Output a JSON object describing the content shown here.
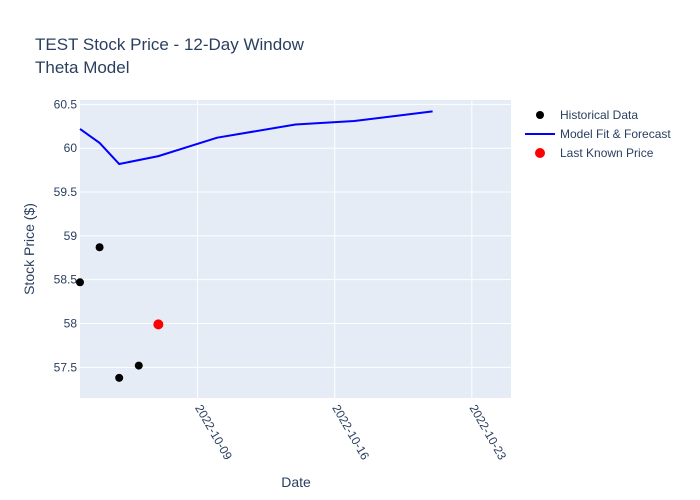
{
  "chart_data": {
    "type": "line",
    "title_lines": [
      "TEST Stock Price - 12-Day Window",
      "Theta Model"
    ],
    "xlabel": "Date",
    "ylabel": "Stock Price ($)",
    "x_range": [
      "2022-10-03",
      "2022-10-25"
    ],
    "ylim": [
      57.15,
      60.55
    ],
    "x_ticks": [
      "2022-10-09",
      "2022-10-16",
      "2022-10-23"
    ],
    "y_ticks": [
      57.5,
      58,
      58.5,
      59,
      59.5,
      60,
      60.5
    ],
    "grid": true,
    "legend_position": "top-right",
    "series": [
      {
        "name": "Historical Data",
        "kind": "markers",
        "color": "#000000",
        "points": [
          {
            "x": "2022-10-03",
            "y": 58.47
          },
          {
            "x": "2022-10-04",
            "y": 58.87
          },
          {
            "x": "2022-10-05",
            "y": 57.38
          },
          {
            "x": "2022-10-06",
            "y": 57.52
          }
        ]
      },
      {
        "name": "Model Fit & Forecast",
        "kind": "line",
        "color": "#0000ff",
        "points": [
          {
            "x": "2022-10-03",
            "y": 60.22
          },
          {
            "x": "2022-10-04",
            "y": 60.06
          },
          {
            "x": "2022-10-05",
            "y": 59.82
          },
          {
            "x": "2022-10-07",
            "y": 59.91
          },
          {
            "x": "2022-10-10",
            "y": 60.12
          },
          {
            "x": "2022-10-14",
            "y": 60.27
          },
          {
            "x": "2022-10-17",
            "y": 60.31
          },
          {
            "x": "2022-10-21",
            "y": 60.42
          }
        ]
      },
      {
        "name": "Last Known Price",
        "kind": "markers",
        "color": "#ff0000",
        "points": [
          {
            "x": "2022-10-07",
            "y": 57.99
          }
        ]
      }
    ]
  }
}
